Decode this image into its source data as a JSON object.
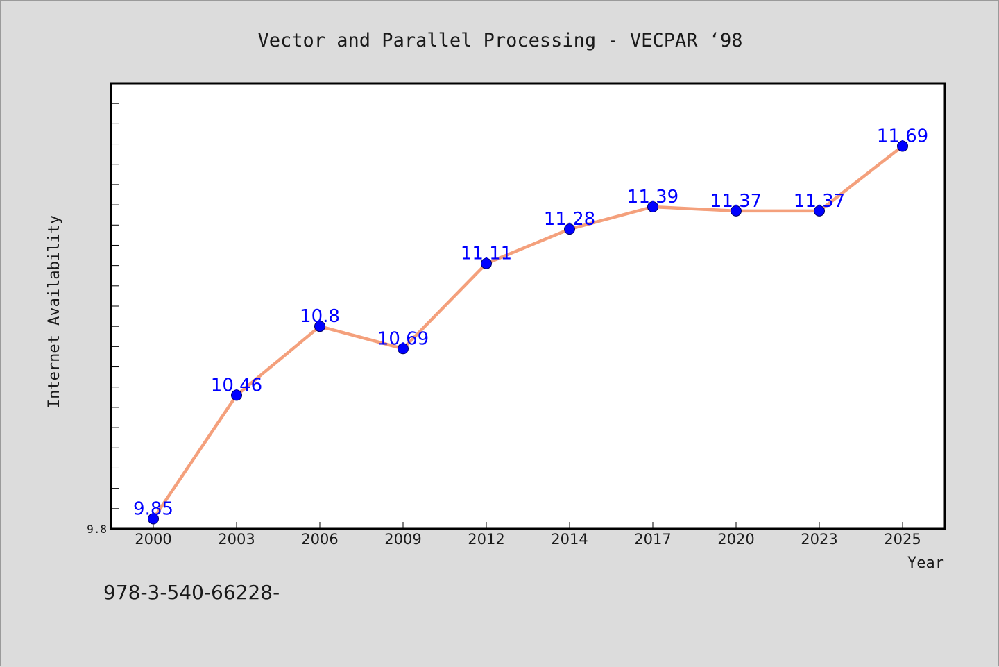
{
  "chart_data": {
    "type": "line",
    "title": "Vector and Parallel Processing - VECPAR ‘98",
    "xlabel": "Year",
    "ylabel": "Internet Availability",
    "categories": [
      "2000",
      "2003",
      "2006",
      "2009",
      "2012",
      "2014",
      "2017",
      "2020",
      "2023",
      "2025"
    ],
    "series": [
      {
        "values": [
          9.85,
          10.46,
          10.8,
          10.69,
          11.11,
          11.28,
          11.39,
          11.37,
          11.37,
          11.69
        ],
        "labels": [
          "9.85",
          "10.46",
          "10.8",
          "10.69",
          "11.11",
          "11.28",
          "11.39",
          "11.37",
          "11.37",
          "11.69"
        ],
        "line_color": "#f4a07c",
        "marker_color": "#0000ff"
      }
    ],
    "ylim": [
      9.8,
      12.0
    ],
    "yticks_labeled": [
      {
        "value": 9.8,
        "label": "9.8"
      }
    ],
    "ytick_minor_step": 0.1,
    "grid": false,
    "legend": "none"
  },
  "footer": {
    "text": "978-3-540-66228-"
  },
  "colors": {
    "background": "#dcdcdc",
    "plot_area": "#ffffff",
    "data_label": "#0000ff"
  }
}
